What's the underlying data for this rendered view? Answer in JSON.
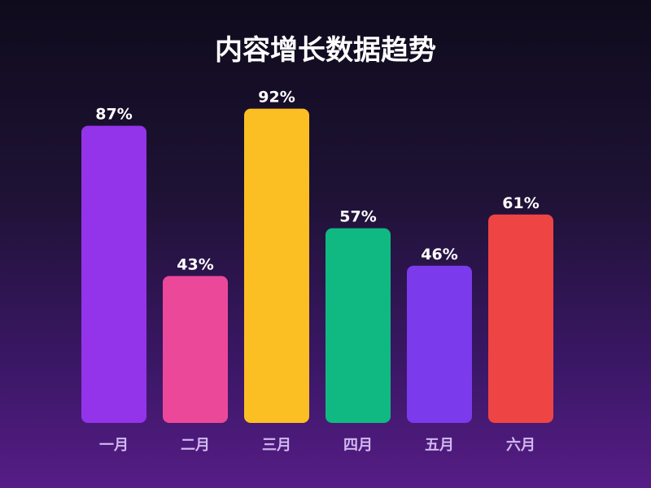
{
  "chart_data": {
    "type": "bar",
    "title": "内容增长数据趋势",
    "categories": [
      "一月",
      "二月",
      "三月",
      "四月",
      "五月",
      "六月"
    ],
    "values": [
      87,
      43,
      92,
      57,
      46,
      61
    ],
    "value_labels": [
      "87%",
      "43%",
      "92%",
      "57%",
      "46%",
      "61%"
    ],
    "colors": [
      "#9333ea",
      "#ec4899",
      "#fbbf24",
      "#10b981",
      "#7c3aed",
      "#ef4444"
    ],
    "ylim": [
      0,
      100
    ],
    "grid": false,
    "xlabel": "",
    "ylabel": ""
  }
}
